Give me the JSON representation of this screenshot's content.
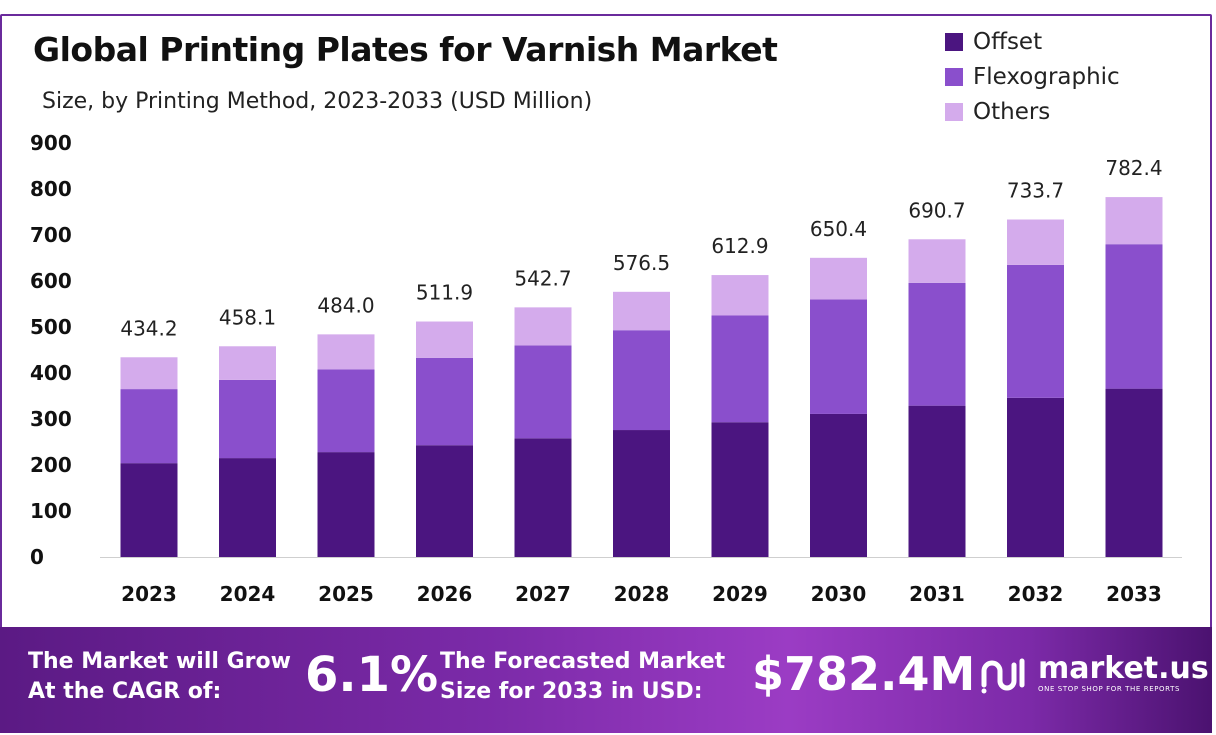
{
  "header": {
    "title": "Global Printing Plates for Varnish Market",
    "subtitle": "Size, by Printing Method, 2023-2033 (USD Million)"
  },
  "colors": {
    "offset": "#4b1580",
    "flexographic": "#8a4fcc",
    "others": "#d4abec",
    "footer": "#7b2aa8"
  },
  "chart_data": {
    "type": "bar",
    "stacked": true,
    "categories": [
      "2023",
      "2024",
      "2025",
      "2026",
      "2027",
      "2028",
      "2029",
      "2030",
      "2031",
      "2032",
      "2033"
    ],
    "series": [
      {
        "name": "Offset",
        "values": [
          204,
          215,
          228,
          243,
          258,
          276,
          293,
          311,
          329,
          346,
          366
        ]
      },
      {
        "name": "Flexographic",
        "values": [
          161,
          170,
          180,
          190,
          202,
          217,
          232,
          249,
          267,
          289,
          314
        ]
      },
      {
        "name": "Others",
        "values": [
          69.2,
          73.1,
          76.0,
          78.9,
          82.7,
          83.5,
          87.9,
          90.4,
          94.7,
          98.7,
          102.4
        ]
      }
    ],
    "totals": [
      "434.2",
      "458.1",
      "484.0",
      "511.9",
      "542.7",
      "576.5",
      "612.9",
      "650.4",
      "690.7",
      "733.7",
      "782.4"
    ],
    "yticks": [
      0,
      100,
      200,
      300,
      400,
      500,
      600,
      700,
      800,
      900
    ],
    "ylim": [
      0,
      900
    ],
    "legend_position": "top-right",
    "grid": false
  },
  "footer": {
    "cagr_label_line1": "The Market will Grow",
    "cagr_label_line2": "At the CAGR of:",
    "cagr_value": "6.1%",
    "forecast_label_line1": "The Forecasted Market",
    "forecast_label_line2": "Size for 2033 in USD:",
    "forecast_value": "$782.4M",
    "brand_name": "market.us",
    "brand_tagline": "ONE STOP SHOP FOR THE REPORTS",
    "brand_icon": "market-us-logo-icon"
  }
}
